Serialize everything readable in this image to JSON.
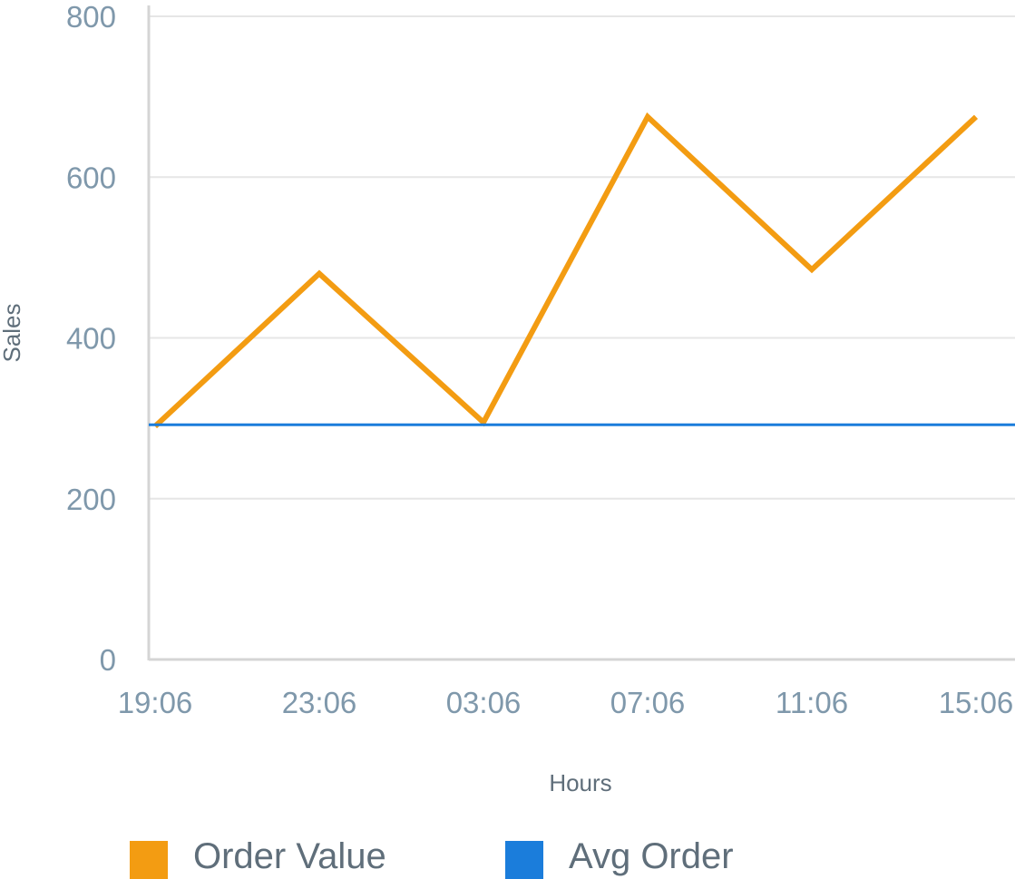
{
  "chart_data": {
    "type": "line",
    "title": "",
    "xlabel": "Hours",
    "ylabel": "Sales",
    "categories": [
      "19:06",
      "23:06",
      "03:06",
      "07:06",
      "11:06",
      "15:06"
    ],
    "y_ticks": [
      "0",
      "200",
      "400",
      "600",
      "800"
    ],
    "ylim": [
      0,
      800
    ],
    "grid": true,
    "legend_position": "bottom",
    "series": [
      {
        "name": "Order Value",
        "values": [
          290,
          480,
          295,
          675,
          485,
          675
        ],
        "color": "#f39c12"
      },
      {
        "name": "Avg Order",
        "values": [
          292,
          292,
          292,
          292,
          292,
          292
        ],
        "color": "#1b7ddb"
      }
    ]
  }
}
